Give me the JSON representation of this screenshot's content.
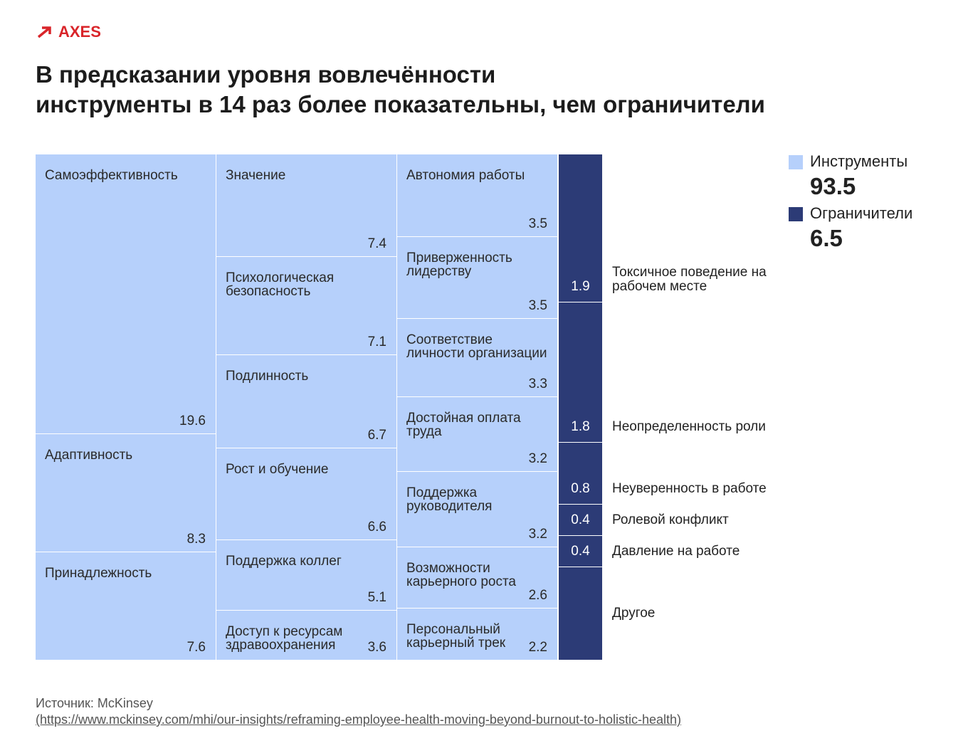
{
  "brand": "AXES",
  "chart_data": {
    "type": "treemap",
    "title": [
      "В предсказании уровня вовлечённости",
      "инструменты в 14 раз более показательны, чем ограничители"
    ],
    "series": [
      {
        "name": "Инструменты",
        "color": "#b6d0fb",
        "total": 93.5,
        "items": [
          {
            "label": "Самоэффективность",
            "value": 19.6
          },
          {
            "label": "Адаптивность",
            "value": 8.3
          },
          {
            "label": "Принадлежность",
            "value": 7.6
          },
          {
            "label": "Значение",
            "value": 7.4
          },
          {
            "label": "Психологическая безопасность",
            "value": 7.1
          },
          {
            "label": "Подлинность",
            "value": 6.7
          },
          {
            "label": "Рост и обучение",
            "value": 6.6
          },
          {
            "label": "Поддержка коллег",
            "value": 5.1
          },
          {
            "label": "Доступ к ресурсам здравоохранения",
            "value": 3.6
          },
          {
            "label": "Автономия работы",
            "value": 3.5
          },
          {
            "label": "Приверженность лидерству",
            "value": 3.5
          },
          {
            "label": "Соответствие личности организации",
            "value": 3.3
          },
          {
            "label": "Достойная оплата труда",
            "value": 3.2
          },
          {
            "label": "Поддержка руководителя",
            "value": 3.2
          },
          {
            "label": "Возможности карьерного роста",
            "value": 2.6
          },
          {
            "label": "Персональный карьерный трек",
            "value": 2.2
          }
        ]
      },
      {
        "name": "Ограничители",
        "color": "#2c3b76",
        "total": 6.5,
        "items": [
          {
            "label": "Токсичное поведение на рабочем месте",
            "value": 1.9
          },
          {
            "label": "Неопределенность роли",
            "value": 1.8
          },
          {
            "label": "Неуверенность в работе",
            "value": 0.8
          },
          {
            "label": "Ролевой конфликт",
            "value": 0.4
          },
          {
            "label": "Давление на работе",
            "value": 0.4
          },
          {
            "label": "Другое",
            "value": 1.2
          }
        ]
      }
    ]
  },
  "source": "Источник: McKinsey",
  "source_link": "(https://www.mckinsey.com/mhi/our-insights/reframing-employee-health-moving-beyond-burnout-to-holistic-health)"
}
